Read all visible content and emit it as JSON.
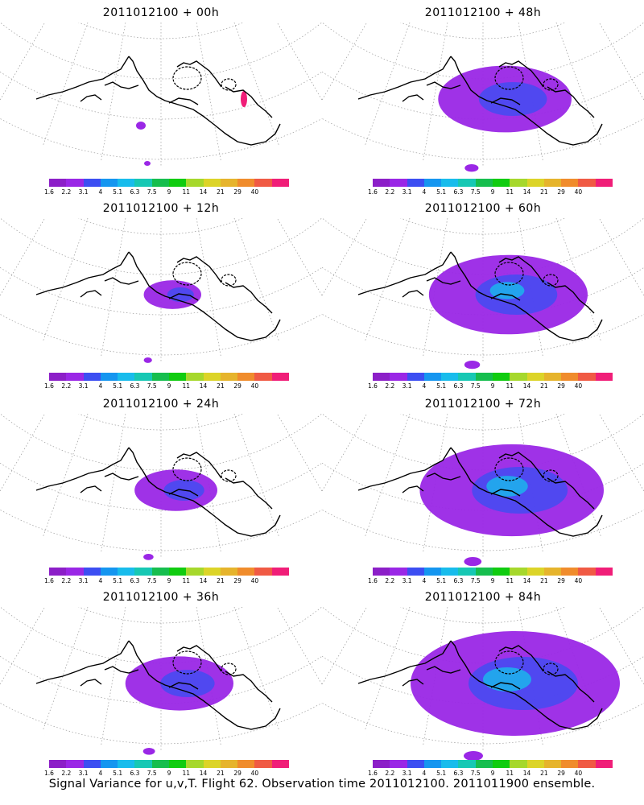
{
  "panels": [
    {
      "title": "2011012100 + 00h",
      "lead_hours": 0
    },
    {
      "title": "2011012100 + 48h",
      "lead_hours": 48
    },
    {
      "title": "2011012100 + 12h",
      "lead_hours": 12
    },
    {
      "title": "2011012100 + 60h",
      "lead_hours": 60
    },
    {
      "title": "2011012100 + 24h",
      "lead_hours": 24
    },
    {
      "title": "2011012100 + 72h",
      "lead_hours": 72
    },
    {
      "title": "2011012100 + 36h",
      "lead_hours": 36
    },
    {
      "title": "2011012100 + 84h",
      "lead_hours": 84
    }
  ],
  "colorbar": {
    "labels": [
      "1.6",
      "2.2",
      "3.1",
      "4",
      "5.1",
      "6.3",
      "7.5",
      "9",
      "11",
      "14",
      "21",
      "29",
      "40"
    ],
    "colors": [
      "#8c1fc8",
      "#9a27e6",
      "#3c4ef2",
      "#1596f0",
      "#18bcec",
      "#17c8b4",
      "#16be4e",
      "#10cc10",
      "#a6d82c",
      "#dcd428",
      "#e6b42c",
      "#f08c2c",
      "#f05a44",
      "#f01e78"
    ]
  },
  "caption": "Signal Variance for u,v,T. Flight 62. Observation time 2011012100. 2011011900 ensemble."
}
